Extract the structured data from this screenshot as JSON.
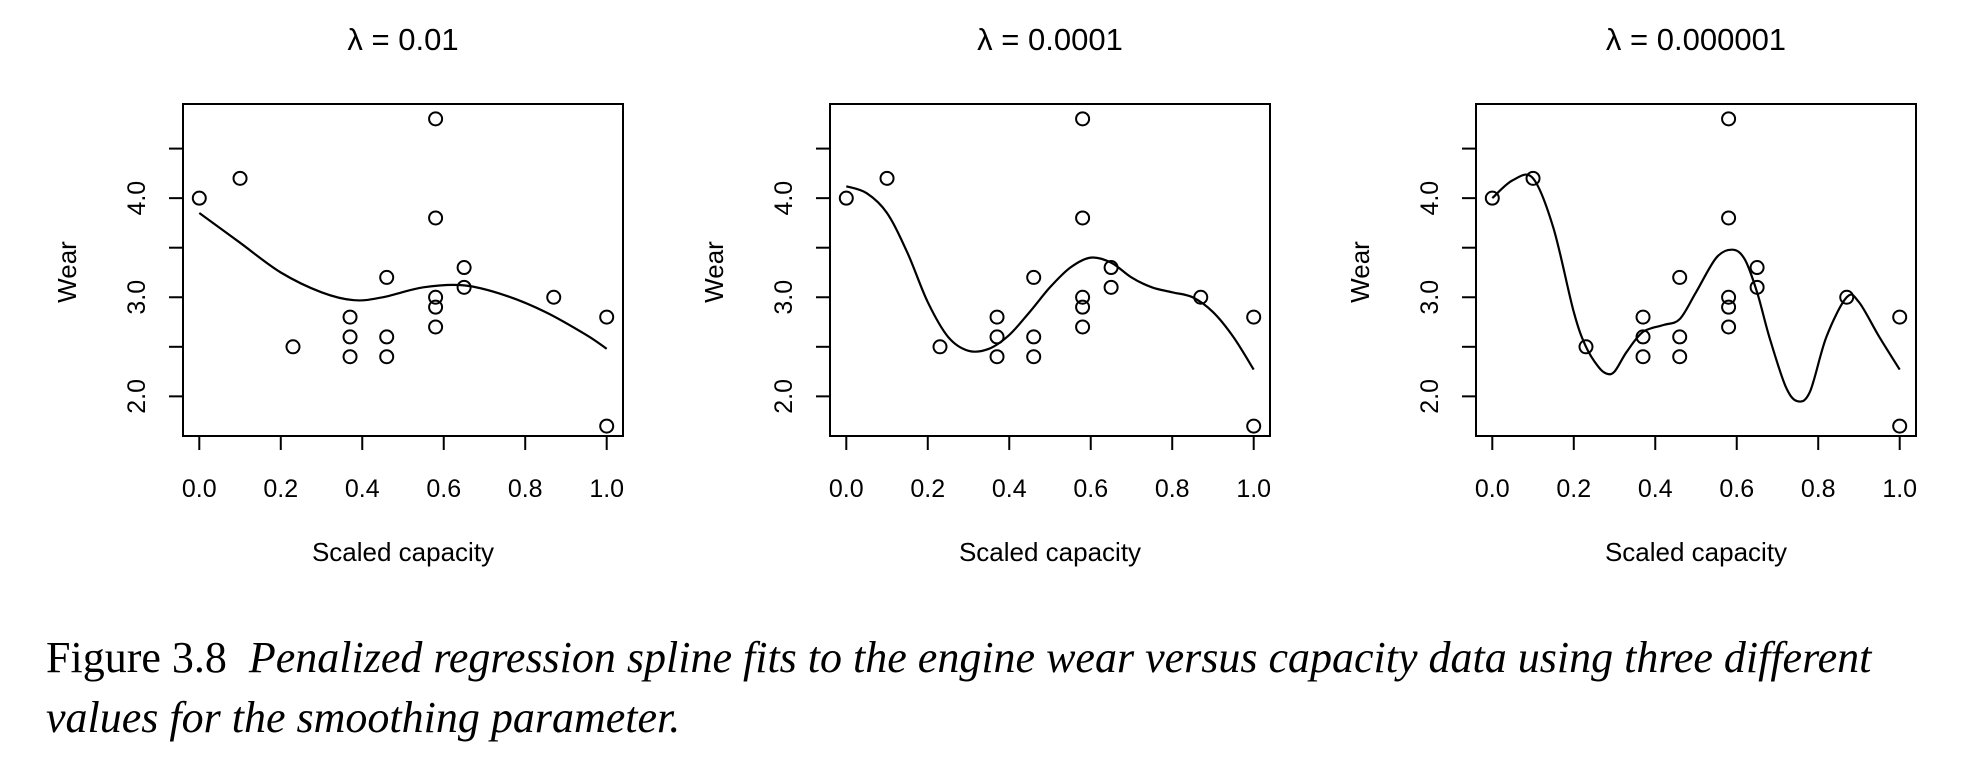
{
  "chart_data": [
    {
      "type": "scatter",
      "title": "λ = 0.01",
      "xlabel": "Scaled capacity",
      "ylabel": "Wear",
      "xlim": [
        -0.04,
        1.04
      ],
      "ylim": [
        1.6,
        4.95
      ],
      "x_ticks": [
        "0.0",
        "0.2",
        "0.4",
        "0.6",
        "0.8",
        "1.0"
      ],
      "y_ticks": [
        "2.0",
        "3.0",
        "4.0"
      ],
      "grid": false,
      "series": [
        {
          "x": [
            0.0,
            0.1,
            0.23,
            0.37,
            0.37,
            0.37,
            0.46,
            0.46,
            0.46,
            0.58,
            0.58,
            0.58,
            0.58,
            0.58,
            0.65,
            0.65,
            0.87,
            1.0,
            1.0
          ],
          "y": [
            4.0,
            4.2,
            2.5,
            2.8,
            2.6,
            2.4,
            3.2,
            2.6,
            2.4,
            4.8,
            3.8,
            3.0,
            2.9,
            2.7,
            3.3,
            3.1,
            3.0,
            2.8,
            1.7
          ]
        }
      ],
      "fit_line": {
        "x": [
          0.0,
          0.1,
          0.2,
          0.3,
          0.38,
          0.45,
          0.55,
          0.65,
          0.75,
          0.85,
          0.95,
          1.0
        ],
        "y": [
          3.85,
          3.55,
          3.25,
          3.05,
          2.97,
          3.0,
          3.1,
          3.12,
          3.02,
          2.85,
          2.62,
          2.48
        ]
      }
    },
    {
      "type": "scatter",
      "title": "λ = 0.0001",
      "xlabel": "Scaled capacity",
      "ylabel": "Wear",
      "xlim": [
        -0.04,
        1.04
      ],
      "ylim": [
        1.6,
        4.95
      ],
      "x_ticks": [
        "0.0",
        "0.2",
        "0.4",
        "0.6",
        "0.8",
        "1.0"
      ],
      "y_ticks": [
        "2.0",
        "3.0",
        "4.0"
      ],
      "grid": false,
      "series": [
        {
          "x": [
            0.0,
            0.1,
            0.23,
            0.37,
            0.37,
            0.37,
            0.46,
            0.46,
            0.46,
            0.58,
            0.58,
            0.58,
            0.58,
            0.58,
            0.65,
            0.65,
            0.87,
            1.0,
            1.0
          ],
          "y": [
            4.0,
            4.2,
            2.5,
            2.8,
            2.6,
            2.4,
            3.2,
            2.6,
            2.4,
            4.8,
            3.8,
            3.0,
            2.9,
            2.7,
            3.3,
            3.1,
            3.0,
            2.8,
            1.7
          ]
        }
      ],
      "fit_line": {
        "x": [
          0.0,
          0.05,
          0.1,
          0.15,
          0.2,
          0.25,
          0.3,
          0.35,
          0.4,
          0.45,
          0.5,
          0.55,
          0.6,
          0.65,
          0.7,
          0.75,
          0.8,
          0.85,
          0.9,
          0.95,
          1.0
        ],
        "y": [
          4.12,
          4.05,
          3.85,
          3.45,
          2.95,
          2.6,
          2.46,
          2.48,
          2.62,
          2.85,
          3.1,
          3.3,
          3.4,
          3.35,
          3.2,
          3.1,
          3.05,
          3.0,
          2.85,
          2.6,
          2.27
        ]
      }
    },
    {
      "type": "scatter",
      "title": "λ = 0.000001",
      "xlabel": "Scaled capacity",
      "ylabel": "Wear",
      "xlim": [
        -0.04,
        1.04
      ],
      "ylim": [
        1.6,
        4.95
      ],
      "x_ticks": [
        "0.0",
        "0.2",
        "0.4",
        "0.6",
        "0.8",
        "1.0"
      ],
      "y_ticks": [
        "2.0",
        "3.0",
        "4.0"
      ],
      "grid": false,
      "series": [
        {
          "x": [
            0.0,
            0.1,
            0.23,
            0.37,
            0.37,
            0.37,
            0.46,
            0.46,
            0.46,
            0.58,
            0.58,
            0.58,
            0.58,
            0.58,
            0.65,
            0.65,
            0.87,
            1.0,
            1.0
          ],
          "y": [
            4.0,
            4.2,
            2.5,
            2.8,
            2.6,
            2.4,
            3.2,
            2.6,
            2.4,
            4.8,
            3.8,
            3.0,
            2.9,
            2.7,
            3.3,
            3.1,
            3.0,
            2.8,
            1.7
          ]
        }
      ],
      "fit_line": {
        "x": [
          0.0,
          0.05,
          0.1,
          0.15,
          0.2,
          0.23,
          0.26,
          0.28,
          0.3,
          0.33,
          0.37,
          0.42,
          0.46,
          0.5,
          0.55,
          0.59,
          0.62,
          0.65,
          0.68,
          0.72,
          0.75,
          0.78,
          0.82,
          0.87,
          0.9,
          0.95,
          1.0
        ],
        "y": [
          4.0,
          4.18,
          4.2,
          3.7,
          2.85,
          2.5,
          2.3,
          2.23,
          2.25,
          2.45,
          2.65,
          2.72,
          2.78,
          3.05,
          3.4,
          3.48,
          3.38,
          3.05,
          2.6,
          2.1,
          1.95,
          2.05,
          2.6,
          3.0,
          2.95,
          2.6,
          2.27
        ]
      }
    }
  ],
  "caption": {
    "label": "Figure 3.8",
    "text": "Penalized regression spline fits to the engine wear versus capacity data using three different values for the smoothing parameter."
  }
}
